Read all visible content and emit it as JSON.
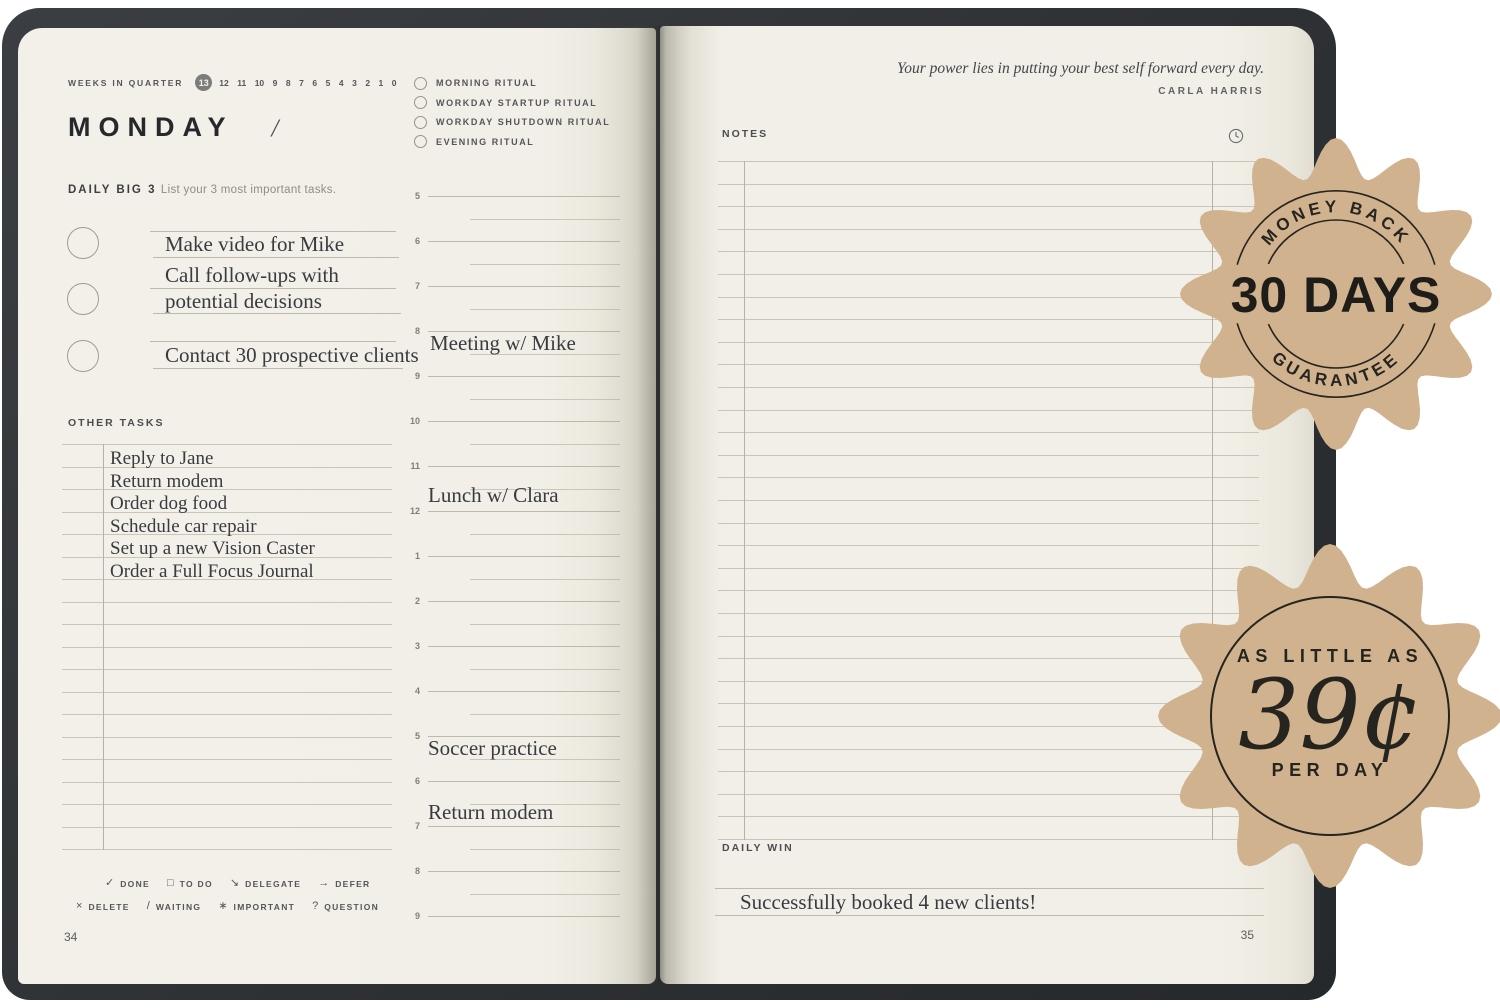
{
  "cover_color": "#2e3134",
  "page_color": "#f1efe7",
  "left_page": {
    "weeks": {
      "label": "WEEKS IN QUARTER",
      "current": "13",
      "numbers": [
        "12",
        "11",
        "10",
        "9",
        "8",
        "7",
        "6",
        "5",
        "4",
        "3",
        "2",
        "1",
        "0"
      ]
    },
    "day": {
      "title": "MONDAY",
      "separator": "/"
    },
    "rituals": [
      {
        "icon": "circle-checkbox",
        "label": "MORNING RITUAL"
      },
      {
        "icon": "circle-checkbox",
        "label": "WORKDAY STARTUP RITUAL"
      },
      {
        "icon": "circle-checkbox",
        "label": "WORKDAY SHUTDOWN RITUAL"
      },
      {
        "icon": "circle-checkbox",
        "label": "EVENING RITUAL"
      }
    ],
    "big3": {
      "label": "DAILY BIG 3",
      "hint": "List your 3 most important tasks.",
      "tasks": [
        {
          "line1": "Make video for Mike"
        },
        {
          "line1": "Call follow-ups with",
          "line2": "potential decisions"
        },
        {
          "line1": "Contact 30 prospective clients"
        }
      ]
    },
    "other_tasks": {
      "label": "OTHER TASKS",
      "items": [
        "Reply to Jane",
        "Return modem",
        "Order dog food",
        "Schedule car repair",
        "Set up a new Vision Caster",
        "Order a Full Focus Journal"
      ]
    },
    "schedule": {
      "hours": [
        "5",
        "6",
        "7",
        "8",
        "9",
        "10",
        "11",
        "12",
        "1",
        "2",
        "3",
        "4",
        "5",
        "6",
        "7",
        "8",
        "9"
      ],
      "entries": {
        "meeting": {
          "slot": "8",
          "text": "Meeting w/ Mike"
        },
        "lunch": {
          "slot": "12",
          "text": "Lunch w/ Clara"
        },
        "soccer": {
          "slot": "5",
          "text": "Soccer practice"
        },
        "modem": {
          "slot": "7",
          "text": "Return modem"
        }
      }
    },
    "legend": {
      "row1": [
        {
          "icon": "check",
          "label": "DONE"
        },
        {
          "icon": "square",
          "label": "TO DO"
        },
        {
          "icon": "arrow-down-right",
          "label": "DELEGATE"
        },
        {
          "icon": "arrow-right",
          "label": "DEFER"
        }
      ],
      "row2": [
        {
          "icon": "x-mark",
          "label": "DELETE"
        },
        {
          "icon": "slash",
          "label": "WAITING"
        },
        {
          "icon": "star",
          "label": "IMPORTANT"
        },
        {
          "icon": "question",
          "label": "QUESTION"
        }
      ]
    },
    "page_number": "34"
  },
  "right_page": {
    "quote": {
      "text": "Your power lies in putting your best self forward every day.",
      "author": "CARLA HARRIS"
    },
    "notes": {
      "label": "NOTES",
      "icon": "clock-icon"
    },
    "daily_win": {
      "label": "DAILY WIN",
      "entry": "Successfully booked 4 new clients!"
    },
    "page_number": "35"
  },
  "badges": {
    "money_back": {
      "arc_top": "MONEY BACK",
      "center": "30 DAYS",
      "arc_bottom": "GUARANTEE",
      "fill": "#d0b28e",
      "ink": "#26241f"
    },
    "price": {
      "top": "AS LITTLE AS",
      "center": "39¢",
      "bottom": "PER DAY",
      "fill": "#d0b28e",
      "ink": "#26241f"
    }
  }
}
